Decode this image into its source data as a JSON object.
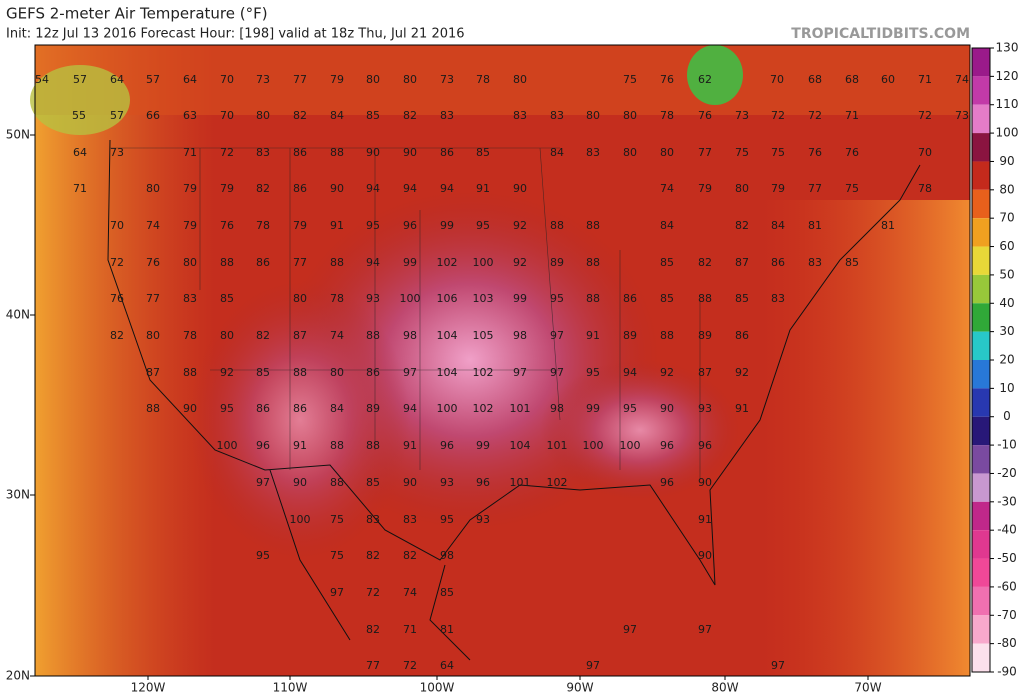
{
  "header": {
    "title": "GEFS 2-meter Air Temperature (°F)",
    "subtitle": "Init: 12z Jul 13 2016   Forecast Hour: [198]   valid at 18z Thu, Jul 21 2016",
    "brand": "TROPICALTIDBITS.COM"
  },
  "latitude_labels": [
    "50N",
    "40N",
    "30N",
    "20N"
  ],
  "longitude_labels": [
    "120W",
    "110W",
    "100W",
    "90W",
    "80W",
    "70W"
  ],
  "colorbar": {
    "ticks": [
      130,
      120,
      110,
      100,
      90,
      80,
      70,
      60,
      50,
      40,
      30,
      20,
      10,
      0,
      -10,
      -20,
      -30,
      -40,
      -50,
      -60,
      -70,
      -80,
      -90
    ],
    "colors": [
      "#9a1a8a",
      "#c23aa8",
      "#e47cc8",
      "#8a1440",
      "#c42a1c",
      "#e8601c",
      "#f0a020",
      "#e8d838",
      "#98c83a",
      "#30a838",
      "#28c8c8",
      "#2878d8",
      "#2838b0",
      "#281878",
      "#7a4aa0",
      "#c898d0",
      "#c0288a",
      "#e03890",
      "#f04898",
      "#f070b0",
      "#f8a8cc",
      "#fce0ec"
    ]
  },
  "temperatures": [
    [
      54,
      57,
      64,
      57,
      64,
      70,
      73,
      77,
      79,
      80,
      80,
      73,
      78,
      80,
      75,
      76,
      62,
      70,
      68,
      68,
      60,
      71,
      74
    ],
    [
      55,
      57,
      66,
      63,
      70,
      80,
      82,
      84,
      85,
      82,
      83,
      83,
      83,
      80,
      80,
      78,
      76,
      73,
      72,
      72,
      71,
      72,
      73
    ],
    [
      64,
      73,
      71,
      72,
      83,
      86,
      88,
      90,
      90,
      86,
      85,
      84,
      83,
      80,
      80,
      77,
      75,
      75,
      76,
      76,
      70
    ],
    [
      71,
      80,
      79,
      79,
      82,
      86,
      90,
      94,
      94,
      94,
      91,
      90,
      74,
      79,
      80,
      79,
      77,
      75,
      78
    ],
    [
      70,
      74,
      79,
      76,
      78,
      79,
      91,
      95,
      96,
      99,
      95,
      92,
      88,
      88,
      84,
      82,
      84,
      81,
      81
    ],
    [
      72,
      76,
      80,
      88,
      86,
      77,
      88,
      94,
      99,
      102,
      100,
      92,
      89,
      88,
      85,
      82,
      87,
      86,
      83,
      85
    ],
    [
      76,
      77,
      83,
      85,
      80,
      78,
      93,
      100,
      106,
      103,
      99,
      95,
      88,
      86,
      85,
      88,
      85,
      83
    ],
    [
      82,
      80,
      78,
      80,
      82,
      87,
      74,
      88,
      98,
      104,
      105,
      98,
      97,
      91,
      89,
      88,
      89,
      86
    ],
    [
      87,
      88,
      92,
      85,
      88,
      80,
      86,
      97,
      104,
      102,
      97,
      97,
      95,
      94,
      92,
      87,
      92
    ],
    [
      88,
      90,
      95,
      86,
      86,
      84,
      89,
      94,
      100,
      102,
      101,
      98,
      99,
      95,
      90,
      93,
      91
    ],
    [
      100,
      96,
      91,
      88,
      88,
      91,
      96,
      99,
      104,
      101,
      100,
      100,
      96,
      96
    ],
    [
      97,
      90,
      88,
      85,
      90,
      93,
      96,
      101,
      102,
      96,
      90
    ],
    [
      100,
      75,
      83,
      83,
      95,
      93,
      91
    ],
    [
      95,
      75,
      82,
      82,
      98,
      90
    ],
    [
      97,
      72,
      74,
      85
    ],
    [
      82,
      71,
      81,
      97,
      97
    ],
    [
      77,
      72,
      64,
      97,
      97
    ]
  ]
}
